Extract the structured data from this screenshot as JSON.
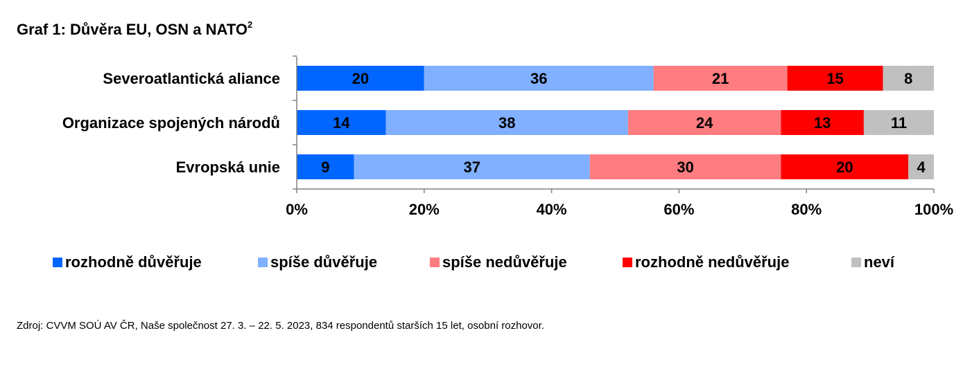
{
  "title": {
    "text": "Graf 1: Důvěra EU, OSN a NATO",
    "superscript": "2"
  },
  "source": "Zdroj: CVVM SOÚ AV ČR, Naše společnost 27. 3. – 22. 5. 2023, 834 respondentů starších 15 let, osobní rozhovor.",
  "colors": {
    "rozhodne_duveruje": "#0066ff",
    "spise_duveruje": "#80b0ff",
    "spise_neduveruje": "#ff7c80",
    "rozhodne_neduveruje": "#ff0000",
    "nevi": "#c0c0c0"
  },
  "chart_data": {
    "type": "bar",
    "orientation": "horizontal",
    "stacked": true,
    "percent_stacked": true,
    "categories": [
      "Severoatlantická aliance",
      "Organizace spojených národů",
      "Evropská unie"
    ],
    "series": [
      {
        "name": "rozhodně důvěřuje",
        "color": "#0066ff",
        "values": [
          20,
          14,
          9
        ]
      },
      {
        "name": "spíše důvěřuje",
        "color": "#80b0ff",
        "values": [
          36,
          38,
          37
        ]
      },
      {
        "name": "spíše nedůvěřuje",
        "color": "#ff7c80",
        "values": [
          21,
          24,
          30
        ]
      },
      {
        "name": "rozhodně nedůvěřuje",
        "color": "#ff0000",
        "values": [
          15,
          13,
          20
        ]
      },
      {
        "name": "neví",
        "color": "#c0c0c0",
        "values": [
          8,
          11,
          4
        ]
      }
    ],
    "xticks": [
      "0%",
      "20%",
      "40%",
      "60%",
      "80%",
      "100%"
    ],
    "xlim": [
      0,
      100
    ],
    "legend_position": "bottom",
    "grid": false
  }
}
